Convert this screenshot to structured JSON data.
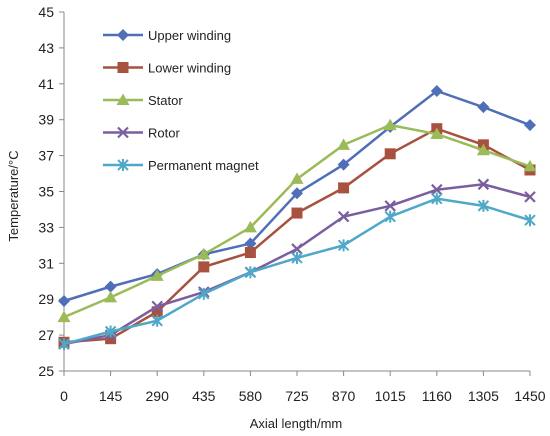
{
  "chart_data": {
    "type": "line",
    "xlabel": "Axial length/mm",
    "ylabel": "Temperature/°C",
    "ylim": [
      25,
      45
    ],
    "yticks": [
      25,
      27,
      29,
      31,
      33,
      35,
      37,
      39,
      41,
      43,
      45
    ],
    "categories": [
      "0",
      "145",
      "290",
      "435",
      "580",
      "725",
      "870",
      "1015",
      "1160",
      "1305",
      "1450"
    ],
    "grid": false,
    "legend_position": "top-left",
    "series": [
      {
        "name": "Upper winding",
        "color": "#4F6FB8",
        "marker": "diamond",
        "values": [
          28.9,
          29.7,
          30.4,
          31.5,
          32.1,
          34.9,
          36.5,
          38.6,
          40.6,
          39.7,
          38.7
        ]
      },
      {
        "name": "Lower winding",
        "color": "#A8513F",
        "marker": "square",
        "values": [
          26.6,
          26.8,
          28.3,
          30.8,
          31.6,
          33.8,
          35.2,
          37.1,
          38.5,
          37.6,
          36.2
        ]
      },
      {
        "name": "Stator",
        "color": "#9BBB59",
        "marker": "triangle",
        "values": [
          28.0,
          29.1,
          30.3,
          31.5,
          33.0,
          35.7,
          37.6,
          38.7,
          38.2,
          37.3,
          36.4
        ]
      },
      {
        "name": "Rotor",
        "color": "#7B5EA0",
        "marker": "x",
        "values": [
          26.5,
          27.0,
          28.6,
          29.4,
          30.5,
          31.8,
          33.6,
          34.2,
          35.1,
          35.4,
          34.7
        ]
      },
      {
        "name": "Permanent magnet",
        "color": "#4FA8C8",
        "marker": "star",
        "values": [
          26.5,
          27.2,
          27.8,
          29.3,
          30.5,
          31.3,
          32.0,
          33.6,
          34.6,
          34.2,
          33.4
        ]
      }
    ]
  }
}
